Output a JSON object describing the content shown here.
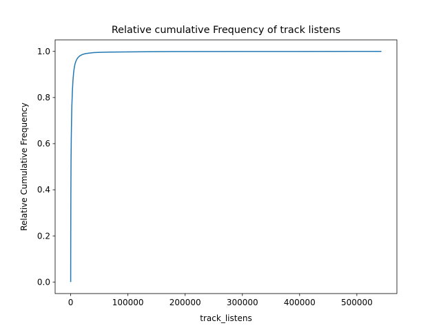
{
  "chart_data": {
    "type": "line",
    "title": "Relative cumulative Frequency of track listens",
    "xlabel": "track_listens",
    "ylabel": "Relative Cumulative Frequency",
    "xlim": [
      -27200,
      570000
    ],
    "ylim": [
      -0.05,
      1.05
    ],
    "x_ticks": [
      0,
      100000,
      200000,
      300000,
      400000,
      500000
    ],
    "y_ticks": [
      0.0,
      0.2,
      0.4,
      0.6,
      0.8,
      1.0
    ],
    "x_tick_labels": [
      "0",
      "100000",
      "200000",
      "300000",
      "400000",
      "500000"
    ],
    "y_tick_labels": [
      "0.0",
      "0.2",
      "0.4",
      "0.6",
      "0.8",
      "1.0"
    ],
    "grid": false,
    "series": [
      {
        "color": "#1f77b4",
        "x": [
          0,
          100,
          300,
          600,
          1000,
          1500,
          2000,
          3000,
          4000,
          5000,
          6000,
          7500,
          9000,
          11000,
          13000,
          16000,
          20000,
          25000,
          30000,
          40000,
          50000,
          70000,
          100000,
          150000,
          200000,
          300000,
          400000,
          543000
        ],
        "y": [
          0.0,
          0.18,
          0.38,
          0.52,
          0.62,
          0.7,
          0.76,
          0.83,
          0.875,
          0.905,
          0.925,
          0.945,
          0.957,
          0.967,
          0.974,
          0.981,
          0.986,
          0.99,
          0.992,
          0.995,
          0.996,
          0.997,
          0.998,
          0.999,
          0.9993,
          0.9996,
          0.9998,
          1.0
        ]
      }
    ]
  }
}
